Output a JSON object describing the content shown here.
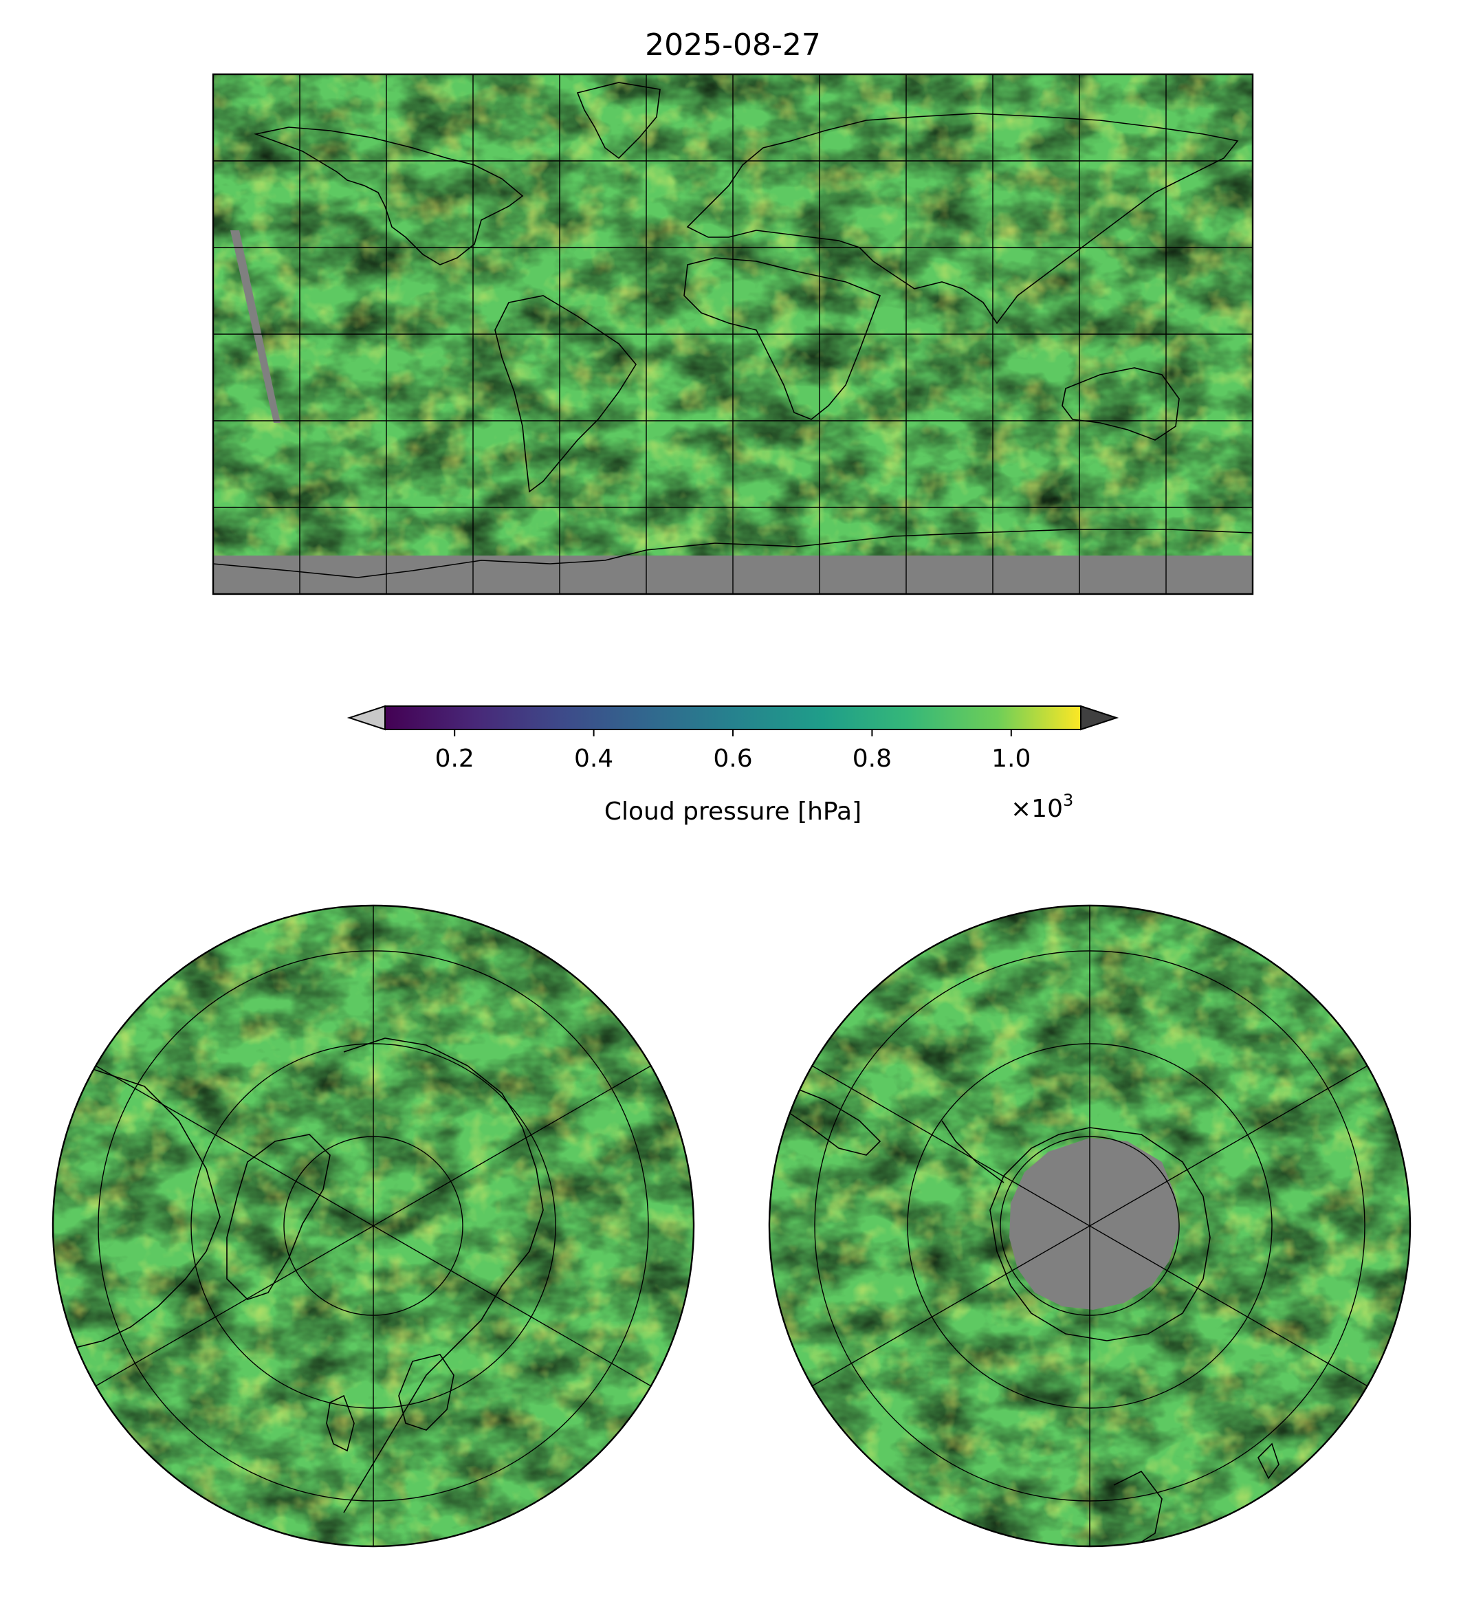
{
  "title": "2025-08-27",
  "colors": {
    "undefined_data": "#808080",
    "coastline": "#000000",
    "gridline": "#000000",
    "extend_min": "#c8c8c8",
    "extend_max": "#404040",
    "colormap": [
      "#440154",
      "#3b528b",
      "#21918c",
      "#5ec962",
      "#fde725"
    ]
  },
  "colorbar": {
    "label": "Cloud pressure [hPa]",
    "multiplier": "×10",
    "multiplier_exponent": "3",
    "ticks": [
      "0.2",
      "0.4",
      "0.6",
      "0.8",
      "1.0"
    ],
    "tick_values": [
      0.2,
      0.4,
      0.6,
      0.8,
      1.0
    ],
    "range": [
      0.1,
      1.1
    ],
    "extend": "both"
  },
  "panels": [
    {
      "name": "global",
      "projection": "equirectangular",
      "gridlines": "every 60° lon, every 30° lat (labelled grid absent)"
    },
    {
      "name": "north-polar",
      "projection": "north polar stereographic"
    },
    {
      "name": "south-polar",
      "projection": "south polar stereographic"
    }
  ]
}
